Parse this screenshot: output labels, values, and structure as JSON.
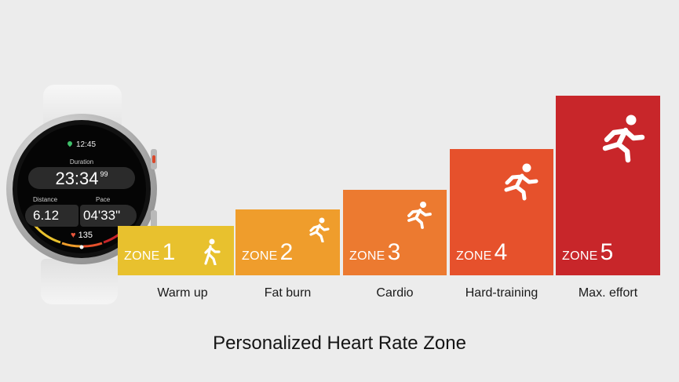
{
  "watch": {
    "time": "12:45",
    "duration_label": "Duration",
    "duration_value": "23:34",
    "duration_fraction": "99",
    "distance_label": "Distance",
    "distance_value": "6.12",
    "pace_label": "Pace",
    "pace_value": "04'33\"",
    "heart_rate": "135",
    "icons": [
      "location-pin-icon",
      "heart-icon"
    ]
  },
  "zones": [
    {
      "word": "ZONE",
      "number": "1",
      "name": "Warm up",
      "color": "#e8c12e"
    },
    {
      "word": "ZONE",
      "number": "2",
      "name": "Fat burn",
      "color": "#ef9d2c"
    },
    {
      "word": "ZONE",
      "number": "3",
      "name": "Cardio",
      "color": "#ec7a30"
    },
    {
      "word": "ZONE",
      "number": "4",
      "name": "Hard-training",
      "color": "#e6512c"
    },
    {
      "word": "ZONE",
      "number": "5",
      "name": "Max. effort",
      "color": "#c8262a"
    }
  ],
  "title": "Personalized Heart Rate Zone"
}
